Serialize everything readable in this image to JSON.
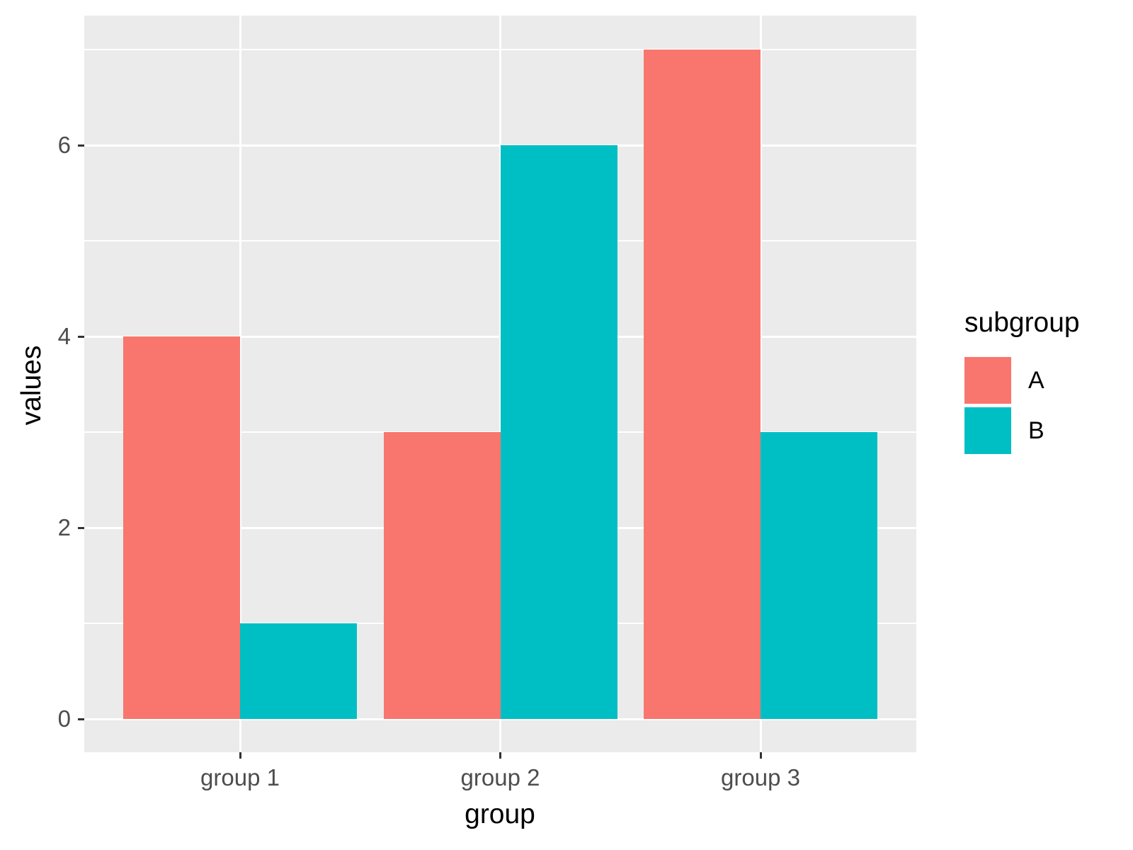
{
  "chart_data": {
    "type": "bar",
    "title": "",
    "categories": [
      "group 1",
      "group 2",
      "group 3"
    ],
    "series": [
      {
        "name": "A",
        "color": "#F8766D",
        "values": [
          4,
          3,
          7
        ]
      },
      {
        "name": "B",
        "color": "#00BFC4",
        "values": [
          1,
          6,
          3
        ]
      }
    ],
    "xlabel": "group",
    "ylabel": "values",
    "y_ticks": [
      0,
      2,
      4,
      6
    ],
    "y_minor_ticks": [
      1,
      3,
      5,
      7
    ],
    "ylim": [
      -0.35,
      7.35
    ],
    "grid": true,
    "legend": {
      "title": "subgroup",
      "position": "right",
      "entries": [
        "A",
        "B"
      ]
    },
    "colors": {
      "panel_background": "#EBEBEB",
      "gridline": "#FFFFFF",
      "tick_label": "#4D4D4D",
      "tick_mark": "#333333",
      "axis_title": "#000000"
    }
  }
}
